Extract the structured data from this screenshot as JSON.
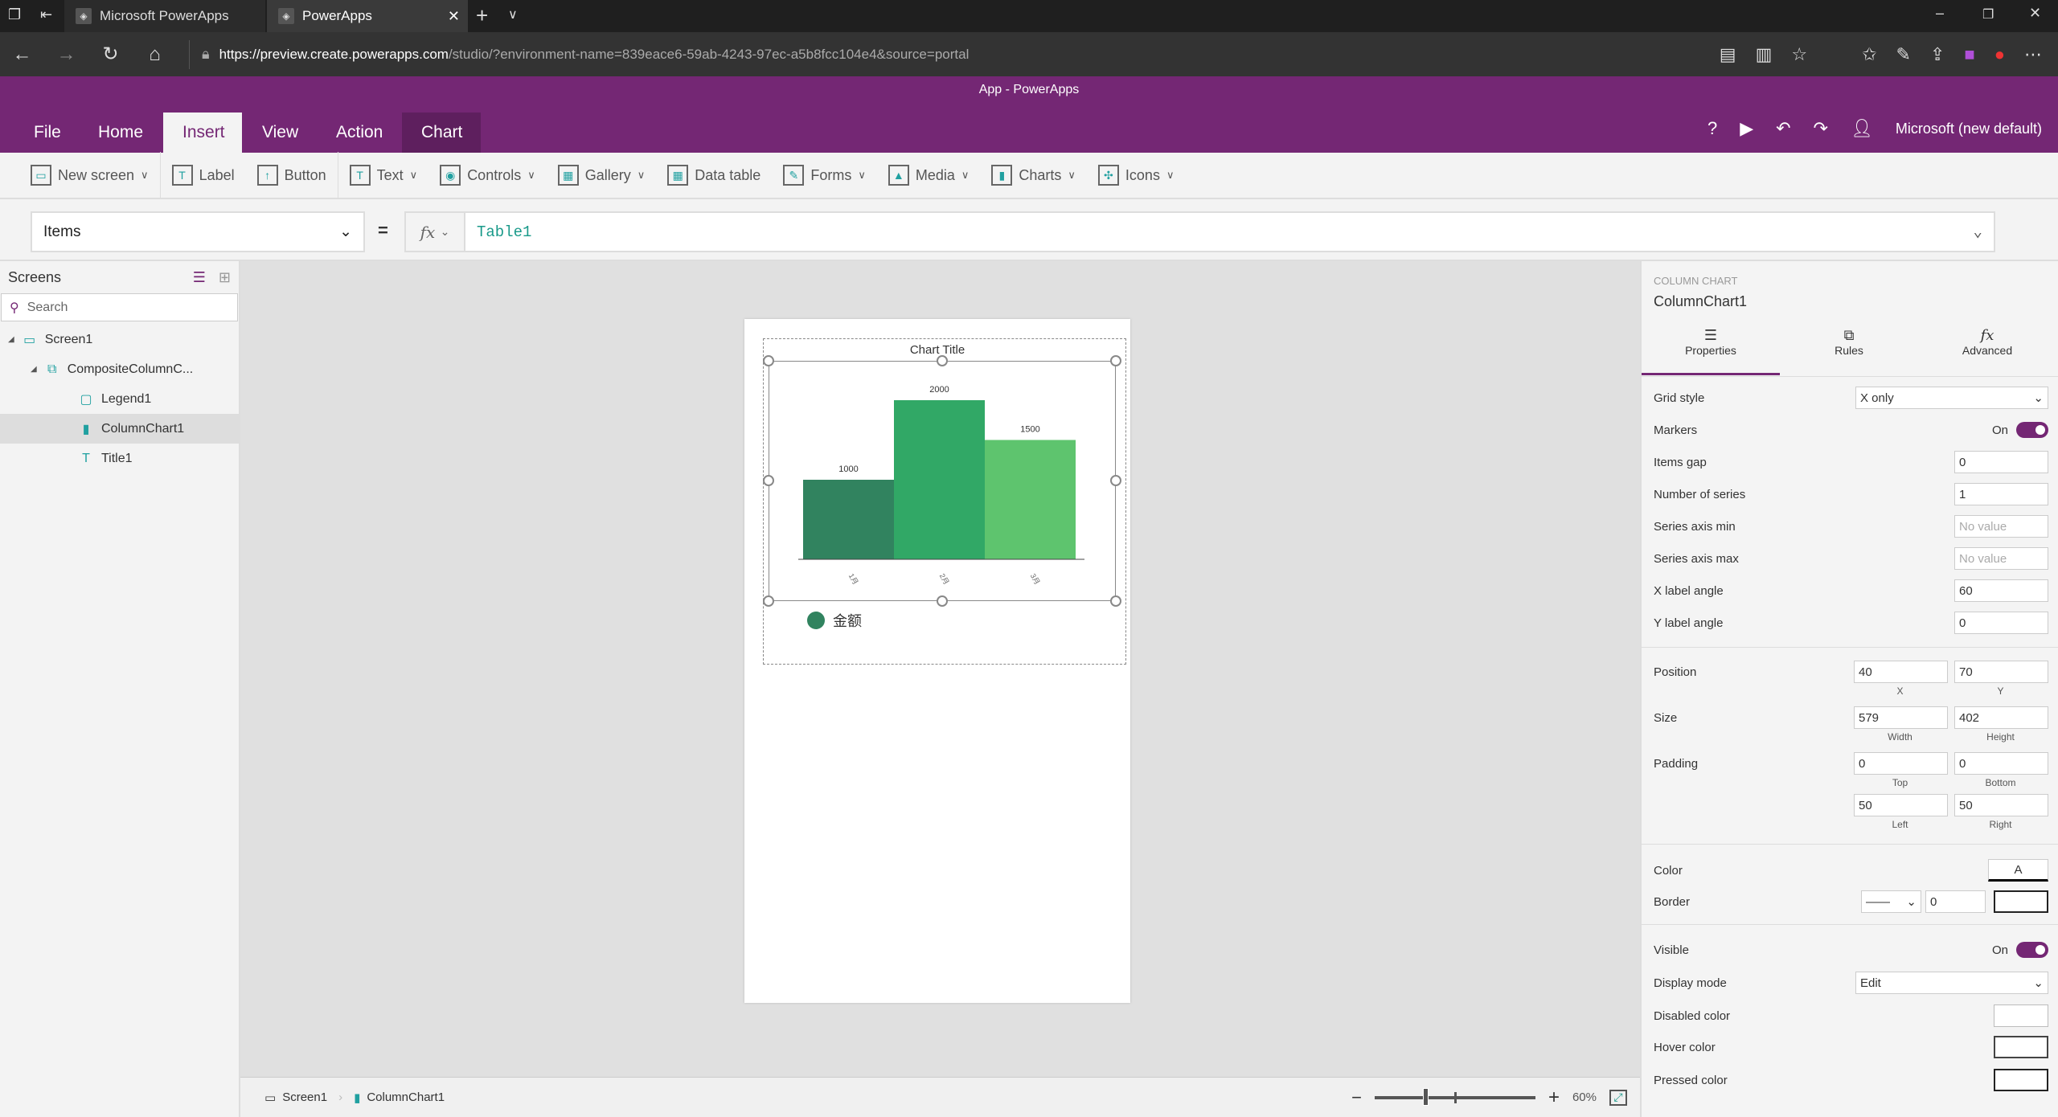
{
  "browser": {
    "tabs": [
      {
        "title": "Microsoft PowerApps"
      },
      {
        "title": "PowerApps"
      }
    ],
    "url_host": "https://preview.create.powerapps.com",
    "url_path": "/studio/?environment-name=839eace6-59ab-4243-97ec-a5b8fcc104e4&source=portal"
  },
  "app": {
    "title": "App - PowerApps",
    "user": "Microsoft (new default)",
    "help": "?"
  },
  "ribbon": {
    "tabs": [
      "File",
      "Home",
      "Insert",
      "View",
      "Action",
      "Chart"
    ],
    "active": "Insert"
  },
  "toolbar": {
    "items": [
      {
        "label": "New screen",
        "icon": "new-screen-icon",
        "dropdown": true
      },
      {
        "label": "Label",
        "icon": "label-icon"
      },
      {
        "label": "Button",
        "icon": "button-icon"
      },
      {
        "label": "Text",
        "icon": "text-icon",
        "dropdown": true
      },
      {
        "label": "Controls",
        "icon": "controls-icon",
        "dropdown": true
      },
      {
        "label": "Gallery",
        "icon": "gallery-icon",
        "dropdown": true
      },
      {
        "label": "Data table",
        "icon": "data-table-icon"
      },
      {
        "label": "Forms",
        "icon": "forms-icon",
        "dropdown": true
      },
      {
        "label": "Media",
        "icon": "media-icon",
        "dropdown": true
      },
      {
        "label": "Charts",
        "icon": "charts-icon",
        "dropdown": true
      },
      {
        "label": "Icons",
        "icon": "icons-icon",
        "dropdown": true
      }
    ]
  },
  "formula": {
    "property": "Items",
    "eq": "=",
    "fx": "fx",
    "value": "Table1"
  },
  "tree": {
    "header": "Screens",
    "search_placeholder": "Search",
    "nodes": [
      {
        "label": "Screen1",
        "level": 0
      },
      {
        "label": "CompositeColumnC...",
        "level": 1
      },
      {
        "label": "Legend1",
        "level": 2
      },
      {
        "label": "ColumnChart1",
        "level": 2,
        "selected": true
      },
      {
        "label": "Title1",
        "level": 2
      }
    ]
  },
  "chart_data": {
    "type": "bar",
    "title": "Chart Title",
    "categories": [
      "1月",
      "2月",
      "3月"
    ],
    "values": [
      1000,
      2000,
      1500
    ],
    "colors": [
      "#31835f",
      "#31a866",
      "#5ec46e"
    ],
    "legend": [
      {
        "name": "金额",
        "color": "#31835f"
      }
    ],
    "x_label_angle": 60,
    "ylim": [
      0,
      2000
    ],
    "grid": false
  },
  "bottom": {
    "screen": "Screen1",
    "control": "ColumnChart1",
    "zoom": "60%",
    "zoom_minus": "−",
    "zoom_plus": "+"
  },
  "panel": {
    "type": "COLUMN CHART",
    "name": "ColumnChart1",
    "tabs": [
      "Properties",
      "Rules",
      "Advanced"
    ],
    "active_tab": "Properties",
    "grid_style": {
      "label": "Grid style",
      "value": "X only"
    },
    "markers": {
      "label": "Markers",
      "value": "On"
    },
    "items_gap": {
      "label": "Items gap",
      "value": "0"
    },
    "num_series": {
      "label": "Number of series",
      "value": "1"
    },
    "axis_min": {
      "label": "Series axis min",
      "placeholder": "No value"
    },
    "axis_max": {
      "label": "Series axis max",
      "placeholder": "No value"
    },
    "x_angle": {
      "label": "X label angle",
      "value": "60"
    },
    "y_angle": {
      "label": "Y label angle",
      "value": "0"
    },
    "position": {
      "label": "Position",
      "x": "40",
      "y": "70",
      "x_lbl": "X",
      "y_lbl": "Y"
    },
    "size": {
      "label": "Size",
      "w": "579",
      "h": "402",
      "w_lbl": "Width",
      "h_lbl": "Height"
    },
    "padding": {
      "label": "Padding",
      "top": "0",
      "bottom": "0",
      "left": "50",
      "right": "50",
      "top_lbl": "Top",
      "bottom_lbl": "Bottom",
      "left_lbl": "Left",
      "right_lbl": "Right"
    },
    "color": {
      "label": "Color",
      "value": "A"
    },
    "border": {
      "label": "Border",
      "value": "0"
    },
    "visible": {
      "label": "Visible",
      "value": "On"
    },
    "display_mode": {
      "label": "Display mode",
      "value": "Edit"
    },
    "disabled_color": {
      "label": "Disabled color"
    },
    "hover_color": {
      "label": "Hover color"
    },
    "pressed_color": {
      "label": "Pressed color"
    }
  },
  "accent": "#742774"
}
